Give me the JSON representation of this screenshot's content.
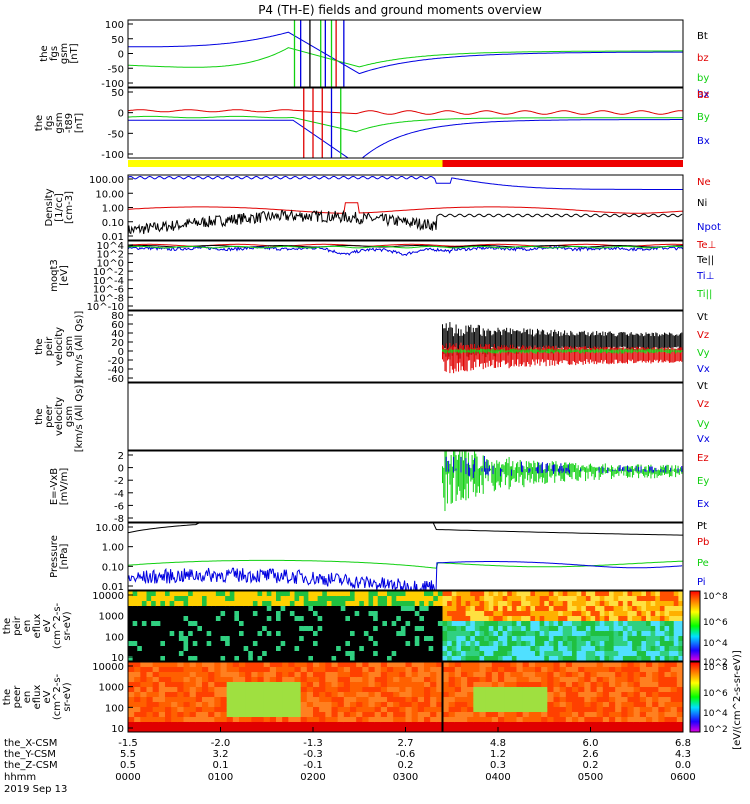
{
  "title": "P4 (TH-E) fields and ground moments overview",
  "time_axis": {
    "row_labels": [
      "the_X-CSM",
      "the_Y-CSM",
      "the_Z-CSM",
      "hhmm",
      "2019 Sep 13"
    ],
    "columns": [
      {
        "x": "-1.5",
        "y": "5.5",
        "z": "0.5",
        "t": "0000"
      },
      {
        "x": "-2.0",
        "y": "3.2",
        "z": "0.1",
        "t": "0100"
      },
      {
        "x": "-1.3",
        "y": "-0.3",
        "z": "-0.1",
        "t": "0200"
      },
      {
        "x": "2.7",
        "y": "-0.6",
        "z": "0.2",
        "t": "0300"
      },
      {
        "x": "4.8",
        "y": "1.2",
        "z": "0.3",
        "t": "0400"
      },
      {
        "x": "6.0",
        "y": "2.6",
        "z": "0.2",
        "t": "0500"
      },
      {
        "x": "6.8",
        "y": "4.3",
        "z": "0.0",
        "t": "0600"
      }
    ]
  },
  "colors": {
    "black": "#000000",
    "red": "#e00000",
    "green": "#10d010",
    "blue": "#0000e0",
    "yellow": "#ffff00",
    "barred": "#ee0000"
  },
  "colorbar": {
    "label": "[eV/(cm^2-s-sr-eV)]",
    "ticks": [
      "10^8",
      "10^6",
      "10^4",
      "10^2"
    ]
  },
  "chart_data": [
    {
      "type": "line",
      "ylabel": [
        "the",
        "fgs",
        "gsm",
        "[nT]"
      ],
      "ylim": [
        -100,
        100
      ],
      "ticks": [
        "100",
        "50",
        "0",
        "-50",
        "-100"
      ],
      "legend": [
        {
          "name": "Bt",
          "color": "#000000"
        },
        {
          "name": "bz",
          "color": "#e00000"
        },
        {
          "name": "by",
          "color": "#10d010"
        },
        {
          "name": "bx",
          "color": "#0000e0"
        }
      ]
    },
    {
      "type": "line",
      "ylabel": [
        "the",
        "fgs",
        "gsm",
        "-t89",
        "[nT]"
      ],
      "ylim": [
        -120,
        80
      ],
      "ticks": [
        "50",
        "0",
        "-50",
        "-100"
      ],
      "legend": [
        {
          "name": "Bz",
          "color": "#e00000"
        },
        {
          "name": "By",
          "color": "#10d010"
        },
        {
          "name": "Bx",
          "color": "#0000e0"
        }
      ]
    },
    {
      "type": "line",
      "log": true,
      "ylabel": [
        "Density",
        "[1/cc]",
        "[cm-3]"
      ],
      "ylim": [
        0.01,
        300
      ],
      "ticks": [
        "100.00",
        "10.00",
        "1.00",
        "0.10",
        "0.01"
      ],
      "legend": [
        {
          "name": "Ne",
          "color": "#e00000"
        },
        {
          "name": "Ni",
          "color": "#000000"
        },
        {
          "name": "Npot",
          "color": "#0000e0"
        }
      ]
    },
    {
      "type": "line",
      "log": true,
      "ylabel": [
        "moqt3",
        "[eV]"
      ],
      "ylim": [
        1e-10,
        10000.0
      ],
      "ticks": [
        "10^4",
        "10^2",
        "10^0",
        "10^-2",
        "10^-4",
        "10^-6",
        "10^-8",
        "10^-10"
      ],
      "legend": [
        {
          "name": "Te⊥",
          "color": "#e00000"
        },
        {
          "name": "Te||",
          "color": "#000000"
        },
        {
          "name": "Ti⊥",
          "color": "#0000e0"
        },
        {
          "name": "Ti||",
          "color": "#10d010"
        }
      ]
    },
    {
      "type": "line",
      "ylabel": [
        "the",
        "peir",
        "velocity",
        "gsm",
        "[km/s (All Qs)]"
      ],
      "ylim": [
        -60,
        80
      ],
      "ticks": [
        "80",
        "60",
        "40",
        "20",
        "0",
        "-20",
        "-40",
        "-60"
      ],
      "legend": [
        {
          "name": "Vt",
          "color": "#000000"
        },
        {
          "name": "Vz",
          "color": "#e00000"
        },
        {
          "name": "Vy",
          "color": "#10d010"
        },
        {
          "name": "Vx",
          "color": "#0000e0"
        }
      ]
    },
    {
      "type": "line",
      "ylabel": [
        "the",
        "peer",
        "velocity",
        "gsm",
        "[km/s (All Qs)]"
      ],
      "ylim": [
        0,
        1
      ],
      "ticks": [],
      "legend": [
        {
          "name": "Vt",
          "color": "#000000"
        },
        {
          "name": "Vz",
          "color": "#e00000"
        },
        {
          "name": "Vy",
          "color": "#10d010"
        },
        {
          "name": "Vx",
          "color": "#0000e0"
        }
      ]
    },
    {
      "type": "line",
      "ylabel": [
        "E=-VxB",
        "[mV/m]"
      ],
      "ylim": [
        -8,
        3
      ],
      "ticks": [
        "2",
        "0",
        "-2",
        "-4",
        "-6",
        "-8"
      ],
      "legend": [
        {
          "name": "Ez",
          "color": "#e00000"
        },
        {
          "name": "Ey",
          "color": "#10d010"
        },
        {
          "name": "Ex",
          "color": "#0000e0"
        }
      ]
    },
    {
      "type": "line",
      "log": true,
      "ylabel": [
        "Pressure",
        "[nPa]"
      ],
      "ylim": [
        0.003,
        40
      ],
      "ticks": [
        "10.00",
        "1.00",
        "0.10",
        "0.01"
      ],
      "legend": [
        {
          "name": "Pt",
          "color": "#000000"
        },
        {
          "name": "Pb",
          "color": "#e00000"
        },
        {
          "name": "Pe",
          "color": "#10d010"
        },
        {
          "name": "Pi",
          "color": "#0000e0"
        }
      ]
    },
    {
      "type": "heatmap",
      "ylabel": [
        "the",
        "peir",
        "en",
        "eflux",
        "eV",
        "(cm^2-s-",
        "sr-eV)"
      ],
      "ylim": [
        5,
        25000
      ],
      "ticks": [
        "10000",
        "1000",
        "100",
        "10"
      ]
    },
    {
      "type": "heatmap",
      "ylabel": [
        "the",
        "peer",
        "en",
        "eflux",
        "eV",
        "(cm^2-s-",
        "sr-eV)"
      ],
      "ylim": [
        5,
        25000
      ],
      "ticks": [
        "10000",
        "1000",
        "100",
        "10"
      ]
    }
  ]
}
